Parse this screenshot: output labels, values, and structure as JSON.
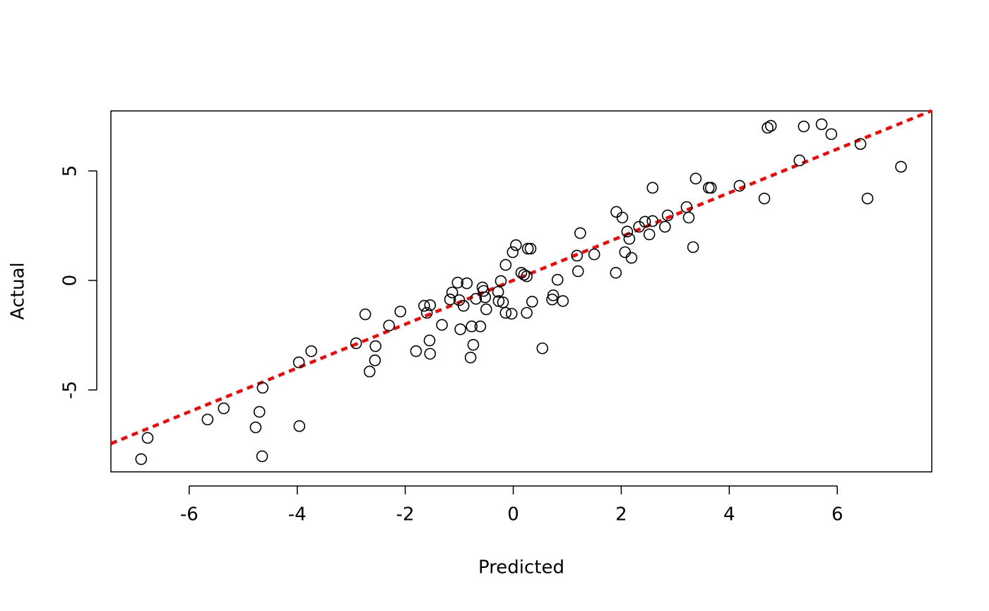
{
  "chart_data": {
    "type": "scatter",
    "xlabel": "Predicted",
    "ylabel": "Actual",
    "x": [
      -6.89,
      -6.77,
      -5.66,
      -5.36,
      -4.77,
      -4.7,
      -4.65,
      -4.64,
      -3.97,
      -3.96,
      -3.74,
      -2.91,
      -2.74,
      -2.66,
      -2.56,
      -2.55,
      -2.3,
      -2.09,
      -1.8,
      -1.65,
      -1.6,
      -1.55,
      -1.54,
      -1.54,
      -1.32,
      -1.17,
      -1.13,
      -1.03,
      -1.0,
      -0.98,
      -0.92,
      -0.86,
      -0.79,
      -0.77,
      -0.74,
      -0.69,
      -0.61,
      -0.57,
      -0.55,
      -0.52,
      -0.5,
      -0.28,
      -0.27,
      -0.23,
      -0.19,
      -0.14,
      -0.14,
      -0.03,
      -0.01,
      0.05,
      0.15,
      0.2,
      0.25,
      0.25,
      0.27,
      0.32,
      0.35,
      0.54,
      0.72,
      0.74,
      0.82,
      0.92,
      1.18,
      1.2,
      1.24,
      1.5,
      1.9,
      1.91,
      2.02,
      2.07,
      2.11,
      2.15,
      2.19,
      2.33,
      2.44,
      2.52,
      2.58,
      2.58,
      2.81,
      2.86,
      3.21,
      3.25,
      3.33,
      3.38,
      3.62,
      3.66,
      4.19,
      4.65,
      4.71,
      4.77,
      5.3,
      5.38,
      5.71,
      5.89,
      6.43,
      6.56,
      7.18
    ],
    "values": [
      -8.16,
      -7.19,
      -6.35,
      -5.84,
      -6.71,
      -6.0,
      -8.03,
      -4.9,
      -3.74,
      -6.65,
      -3.23,
      -2.87,
      -1.55,
      -4.16,
      -3.65,
      -3.0,
      -2.06,
      -1.42,
      -3.23,
      -1.16,
      -1.48,
      -2.74,
      -3.35,
      -1.13,
      -2.03,
      -0.87,
      -0.55,
      -0.1,
      -0.9,
      -2.23,
      -1.16,
      -0.13,
      -3.52,
      -2.1,
      -2.94,
      -0.84,
      -2.1,
      -0.32,
      -0.48,
      -0.77,
      -1.32,
      -0.52,
      -0.94,
      -0.03,
      -1.0,
      0.71,
      -1.48,
      -1.52,
      1.29,
      1.61,
      0.35,
      0.26,
      0.19,
      -1.48,
      1.45,
      1.45,
      -0.97,
      -3.1,
      -0.87,
      -0.68,
      0.03,
      -0.94,
      1.13,
      0.42,
      2.16,
      1.19,
      0.35,
      3.13,
      2.87,
      1.29,
      2.23,
      1.9,
      1.03,
      2.45,
      2.68,
      2.1,
      2.71,
      4.23,
      2.45,
      2.97,
      3.35,
      2.87,
      1.52,
      4.65,
      4.23,
      4.23,
      4.32,
      3.74,
      6.97,
      7.06,
      5.48,
      7.03,
      7.13,
      6.68,
      6.23,
      3.74,
      5.19
    ],
    "color": "#000000",
    "xlim": [
      -7.45,
      7.75
    ],
    "ylim": [
      -8.74,
      7.74
    ],
    "xticks": [
      -6,
      -4,
      -2,
      0,
      2,
      4,
      6
    ],
    "yticks": [
      -5,
      0,
      5
    ],
    "reference_line": {
      "slope": 1,
      "intercept": 0,
      "color": "#ff0000",
      "dashed": true
    }
  }
}
